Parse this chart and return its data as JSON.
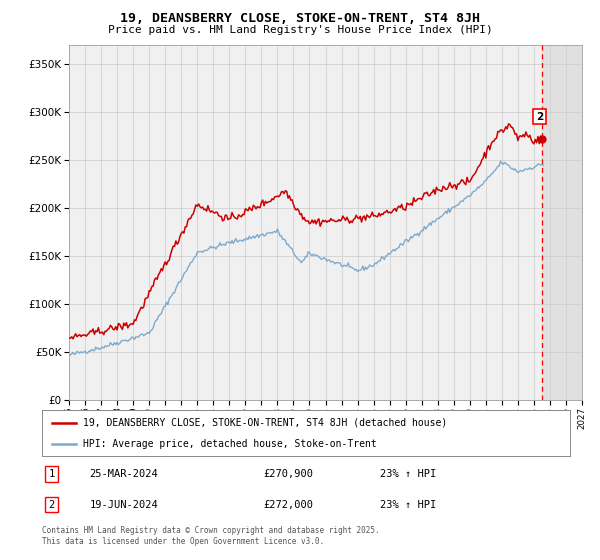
{
  "title": "19, DEANSBERRY CLOSE, STOKE-ON-TRENT, ST4 8JH",
  "subtitle": "Price paid vs. HM Land Registry's House Price Index (HPI)",
  "ylabel_ticks": [
    "£0",
    "£50K",
    "£100K",
    "£150K",
    "£200K",
    "£250K",
    "£300K",
    "£350K"
  ],
  "ytick_values": [
    0,
    50000,
    100000,
    150000,
    200000,
    250000,
    300000,
    350000
  ],
  "ylim": [
    0,
    370000
  ],
  "xlim_start": 1995.0,
  "xlim_end": 2027.0,
  "legend_line1": "19, DEANSBERRY CLOSE, STOKE-ON-TRENT, ST4 8JH (detached house)",
  "legend_line2": "HPI: Average price, detached house, Stoke-on-Trent",
  "red_color": "#cc0000",
  "blue_color": "#7faacc",
  "annotation1": [
    "1",
    "25-MAR-2024",
    "£270,900",
    "23% ↑ HPI"
  ],
  "annotation2": [
    "2",
    "19-JUN-2024",
    "£272,000",
    "23% ↑ HPI"
  ],
  "footer": "Contains HM Land Registry data © Crown copyright and database right 2025.\nThis data is licensed under the Open Government Licence v3.0.",
  "bg_color": "#f0f0f0",
  "grid_color": "#cccccc",
  "dashed_line_x": 2024.5,
  "hatch_region_color": "#e0e0e0"
}
